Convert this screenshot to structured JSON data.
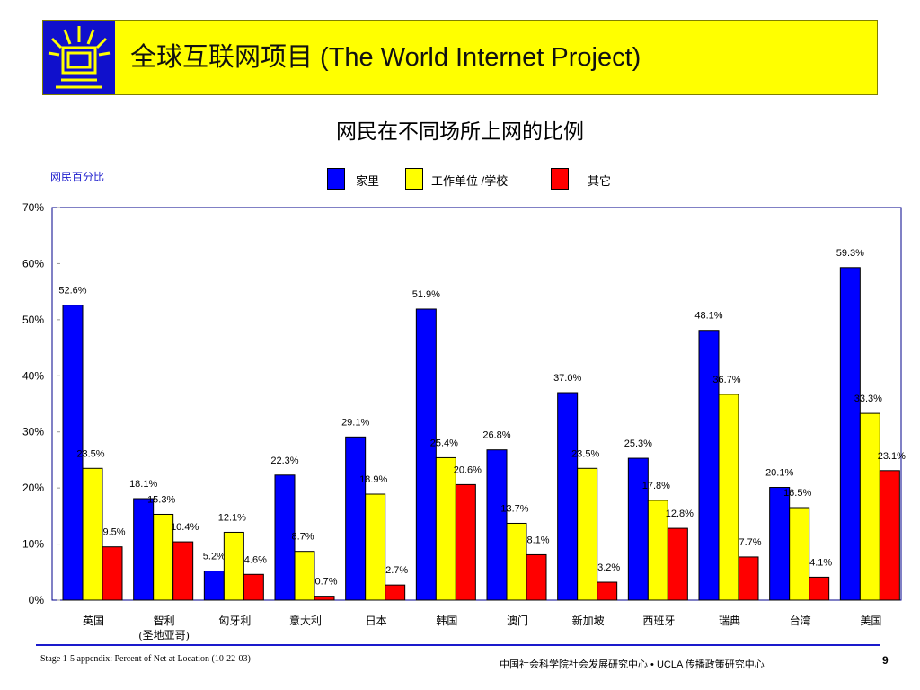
{
  "header": {
    "title": "全球互联网项目 (The World Internet Project)"
  },
  "chart_data": {
    "type": "bar",
    "title": "网民在不同场所上网的比例",
    "ylabel": "网民百分比",
    "ylim": [
      0,
      70
    ],
    "yticks": [
      "0%",
      "10%",
      "20%",
      "30%",
      "40%",
      "50%",
      "60%",
      "70%"
    ],
    "categories": [
      "英国",
      "智利\n(圣地亚哥)",
      "匈牙利",
      "意大利",
      "日本",
      "韩国",
      "澳门",
      "新加坡",
      "西班牙",
      "瑞典",
      "台湾",
      "美国"
    ],
    "series": [
      {
        "name": "家里",
        "color": "#0000ff",
        "values": [
          52.6,
          18.1,
          5.2,
          22.3,
          29.1,
          51.9,
          26.8,
          37.0,
          25.3,
          48.1,
          20.1,
          59.3
        ],
        "labels": [
          "52.6%",
          "18.1%",
          "5.2%",
          "22.3%",
          "29.1%",
          "51.9%",
          "26.8%",
          "37.0%",
          "25.3%",
          "48.1%",
          "20.1%",
          "59.3%"
        ]
      },
      {
        "name": "工作单位 /学校",
        "color": "#ffff00",
        "values": [
          23.5,
          15.3,
          12.1,
          8.7,
          18.9,
          25.4,
          13.7,
          23.5,
          17.8,
          36.7,
          16.5,
          33.3
        ],
        "labels": [
          "23.5%",
          "15.3%",
          "12.1%",
          "8.7%",
          "18.9%",
          "25.4%",
          "13.7%",
          "23.5%",
          "17.8%",
          "36.7%",
          "16.5%",
          "33.3%"
        ]
      },
      {
        "name": "其它",
        "color": "#ff0000",
        "values": [
          9.5,
          10.4,
          4.6,
          0.7,
          2.7,
          20.6,
          8.1,
          3.2,
          12.8,
          7.7,
          4.1,
          23.1
        ],
        "labels": [
          "9.5%",
          "10.4%",
          "4.6%",
          "0.7%",
          "2.7%",
          "20.6%",
          "8.1%",
          "3.2%",
          "12.8%",
          "7.7%",
          "4.1%",
          "23.1%"
        ]
      }
    ],
    "legend": "top-center",
    "grid": false
  },
  "footer": {
    "left": "Stage 1-5 appendix: Percent of Net at Location (10-22-03)",
    "right": "中国社会科学院社会发展研究中心 • UCLA 传播政策研究中心",
    "page": "9"
  }
}
